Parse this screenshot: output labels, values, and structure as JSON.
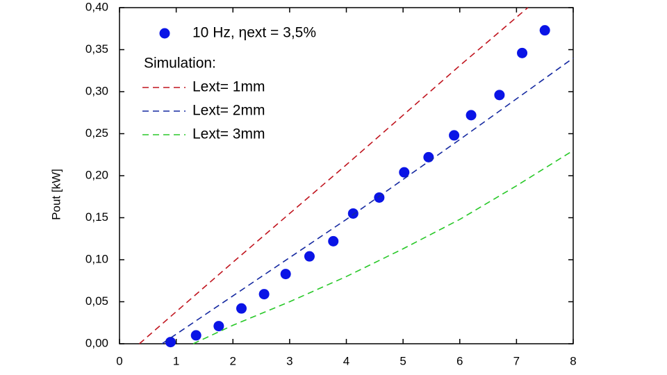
{
  "chart_data": {
    "type": "scatter",
    "ylabel": "Pout [kW]",
    "legend_title": "Simulation:",
    "legend_position": "upper left",
    "xlim": [
      0,
      8
    ],
    "xticks": [
      0,
      1,
      2,
      3,
      4,
      5,
      6,
      7,
      8
    ],
    "ylim": [
      0,
      0.4
    ],
    "yticks": [
      {
        "value": 0,
        "label": "0,00"
      },
      {
        "value": 0.05,
        "label": "0,05"
      },
      {
        "value": 0.1,
        "label": "0,10"
      },
      {
        "value": 0.15,
        "label": "0,15"
      },
      {
        "value": 0.2,
        "label": "0,20"
      },
      {
        "value": 0.25,
        "label": "0,25"
      },
      {
        "value": 0.3,
        "label": "0,30"
      },
      {
        "value": 0.35,
        "label": "0,35"
      },
      {
        "value": 0.4,
        "label": "0,40"
      }
    ],
    "series": [
      {
        "name": "10 Hz, ηext = 3,5%",
        "color": "#0a14e6",
        "mode": "markers",
        "x": [
          0.9,
          1.35,
          1.75,
          2.15,
          2.55,
          2.93,
          3.35,
          3.77,
          4.12,
          4.58,
          5.02,
          5.45,
          5.9,
          6.2,
          6.7,
          7.1,
          7.5
        ],
        "values": [
          0.002,
          0.01,
          0.021,
          0.042,
          0.059,
          0.083,
          0.104,
          0.122,
          0.155,
          0.174,
          0.204,
          0.222,
          0.248,
          0.272,
          0.296,
          0.346,
          0.373
        ]
      },
      {
        "name": "Lext= 1mm",
        "color": "#c0141e",
        "mode": "dashed",
        "x": [
          0.35,
          2,
          4,
          6,
          7.2
        ],
        "values": [
          0,
          0.097,
          0.213,
          0.331,
          0.4
        ]
      },
      {
        "name": "Lext= 2mm",
        "color": "#1428a0",
        "mode": "dashed",
        "x": [
          0.75,
          2,
          4,
          6,
          8
        ],
        "values": [
          0,
          0.057,
          0.148,
          0.243,
          0.34
        ]
      },
      {
        "name": "Lext= 3mm",
        "color": "#28c828",
        "mode": "dashed",
        "x": [
          1.3,
          2,
          3,
          4,
          5,
          6,
          7,
          8
        ],
        "values": [
          0,
          0.022,
          0.05,
          0.08,
          0.113,
          0.148,
          0.188,
          0.23
        ]
      }
    ]
  }
}
